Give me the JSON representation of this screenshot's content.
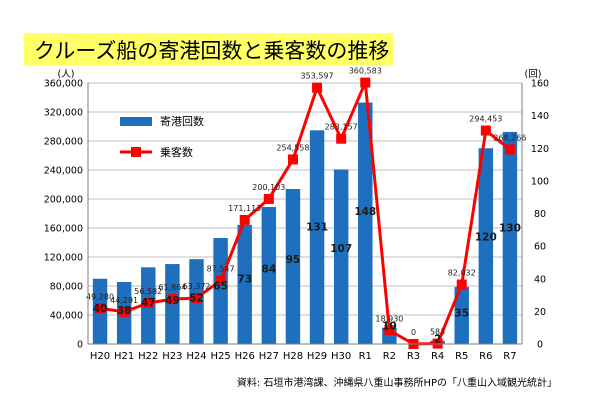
{
  "title": "クルーズ船の寄港回数と乗客数の推移",
  "source": "資料: 石垣市港湾課、沖縄県八重山事務所HPの「八重山入域観光統計」",
  "colors": {
    "bar": "#1f6fbf",
    "line": "#ff0000",
    "title_bg": "#ffff66"
  },
  "chart_data": {
    "type": "bar",
    "categories": [
      "H20",
      "H21",
      "H22",
      "H23",
      "H24",
      "H25",
      "H26",
      "H27",
      "H28",
      "H29",
      "H30",
      "R1",
      "R2",
      "R3",
      "R4",
      "R5",
      "R6",
      "R7"
    ],
    "y_left_unit": "(人)",
    "y_right_unit": "(回)",
    "y_left_ticks": [
      "0",
      "40,000",
      "80,000",
      "120,000",
      "160,000",
      "200,000",
      "240,000",
      "280,000",
      "320,000",
      "360,000"
    ],
    "y_right_ticks": [
      "0",
      "20",
      "40",
      "60",
      "80",
      "100",
      "120",
      "140",
      "160"
    ],
    "ylim_left": [
      0,
      360000
    ],
    "ylim_right": [
      0,
      160
    ],
    "legend": {
      "position": "upper-left",
      "bar_label": "寄港回数",
      "line_label": "乗客数"
    },
    "series": [
      {
        "name": "寄港回数",
        "type": "bar",
        "axis": "right",
        "values": [
          40,
          38,
          47,
          49,
          52,
          65,
          73,
          84,
          95,
          131,
          107,
          148,
          10,
          0,
          2,
          35,
          120,
          130
        ],
        "labels": [
          "40",
          "38",
          "47",
          "49",
          "52",
          "65",
          "73",
          "84",
          "95",
          "131",
          "107",
          "148",
          "10",
          "",
          "2",
          "35",
          "120",
          "130"
        ]
      },
      {
        "name": "乗客数",
        "type": "line",
        "axis": "left",
        "values": [
          49280,
          44291,
          56582,
          61864,
          63372,
          87547,
          171113,
          200103,
          254558,
          353597,
          283157,
          360583,
          18930,
          0,
          583,
          82032,
          294453,
          268266
        ],
        "labels": [
          "49,280",
          "44,291",
          "56,582",
          "61,864",
          "63,372",
          "87,547",
          "171,113",
          "200,103",
          "254,558",
          "353,597",
          "283,157",
          "360,583",
          "18,930",
          "0",
          "583",
          "82,032",
          "294,453",
          "268,266"
        ]
      }
    ]
  }
}
